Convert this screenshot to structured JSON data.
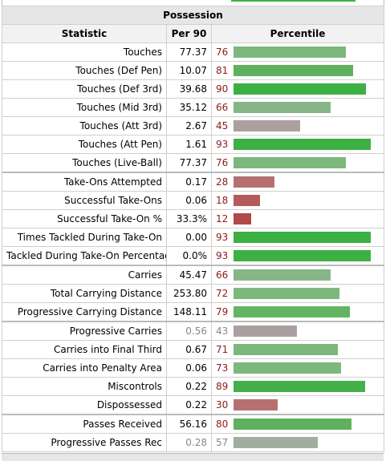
{
  "table": {
    "title": "Possession",
    "headers": {
      "statistic": "Statistic",
      "per90": "Per 90",
      "percentile": "Percentile"
    },
    "rows": [
      {
        "stat": "Touches",
        "per90": "77.37",
        "pct": 76,
        "color": "#7cb77c",
        "numColor": "#8b1a1a"
      },
      {
        "stat": "Touches (Def Pen)",
        "per90": "10.07",
        "pct": 81,
        "color": "#5fb15f",
        "numColor": "#8b1a1a"
      },
      {
        "stat": "Touches (Def 3rd)",
        "per90": "39.68",
        "pct": 90,
        "color": "#3cb043",
        "numColor": "#8b1a1a"
      },
      {
        "stat": "Touches (Mid 3rd)",
        "per90": "35.12",
        "pct": 66,
        "color": "#88b588",
        "numColor": "#8b1a1a"
      },
      {
        "stat": "Touches (Att 3rd)",
        "per90": "2.67",
        "pct": 45,
        "color": "#ac9fa0",
        "numColor": "#8b1a1a"
      },
      {
        "stat": "Touches (Att Pen)",
        "per90": "1.61",
        "pct": 93,
        "color": "#3cb043",
        "numColor": "#8b1a1a"
      },
      {
        "stat": "Touches (Live-Ball)",
        "per90": "77.37",
        "pct": 76,
        "color": "#7cb77c",
        "numColor": "#8b1a1a"
      },
      {
        "stat": "Take-Ons Attempted",
        "per90": "0.17",
        "pct": 28,
        "color": "#b57171",
        "numColor": "#8b1a1a",
        "sep": true
      },
      {
        "stat": "Successful Take-Ons",
        "per90": "0.06",
        "pct": 18,
        "color": "#b45c5c",
        "numColor": "#8b1a1a"
      },
      {
        "stat": "Successful Take-On %",
        "per90": "33.3%",
        "pct": 12,
        "color": "#b24848",
        "numColor": "#8b1a1a"
      },
      {
        "stat": "Times Tackled During Take-On",
        "per90": "0.00",
        "pct": 93,
        "color": "#3cb043",
        "numColor": "#8b1a1a"
      },
      {
        "stat": "Tackled During Take-On Percentage",
        "per90": "0.0%",
        "pct": 93,
        "color": "#3cb043",
        "numColor": "#8b1a1a"
      },
      {
        "stat": "Carries",
        "per90": "45.47",
        "pct": 66,
        "color": "#88b588",
        "numColor": "#8b1a1a",
        "sep": true
      },
      {
        "stat": "Total Carrying Distance",
        "per90": "253.80",
        "pct": 72,
        "color": "#7cb77c",
        "numColor": "#8b1a1a"
      },
      {
        "stat": "Progressive Carrying Distance",
        "per90": "148.11",
        "pct": 79,
        "color": "#62b462",
        "numColor": "#8b1a1a"
      },
      {
        "stat": "Progressive Carries",
        "per90": "0.56",
        "pct": 43,
        "color": "#ac9fa0",
        "numColor": "#888888",
        "sep": true,
        "dim": true
      },
      {
        "stat": "Carries into Final Third",
        "per90": "0.67",
        "pct": 71,
        "color": "#7cb77c",
        "numColor": "#8b1a1a"
      },
      {
        "stat": "Carries into Penalty Area",
        "per90": "0.06",
        "pct": 73,
        "color": "#7cb77c",
        "numColor": "#8b1a1a"
      },
      {
        "stat": "Miscontrols",
        "per90": "0.22",
        "pct": 89,
        "color": "#44b04a",
        "numColor": "#8b1a1a"
      },
      {
        "stat": "Dispossessed",
        "per90": "0.22",
        "pct": 30,
        "color": "#b57171",
        "numColor": "#8b1a1a"
      },
      {
        "stat": "Passes Received",
        "per90": "56.16",
        "pct": 80,
        "color": "#5fb15f",
        "numColor": "#8b1a1a",
        "sep": true
      },
      {
        "stat": "Progressive Passes Rec",
        "per90": "0.28",
        "pct": 57,
        "color": "#9fae9f",
        "numColor": "#888888",
        "dim": true
      }
    ]
  }
}
